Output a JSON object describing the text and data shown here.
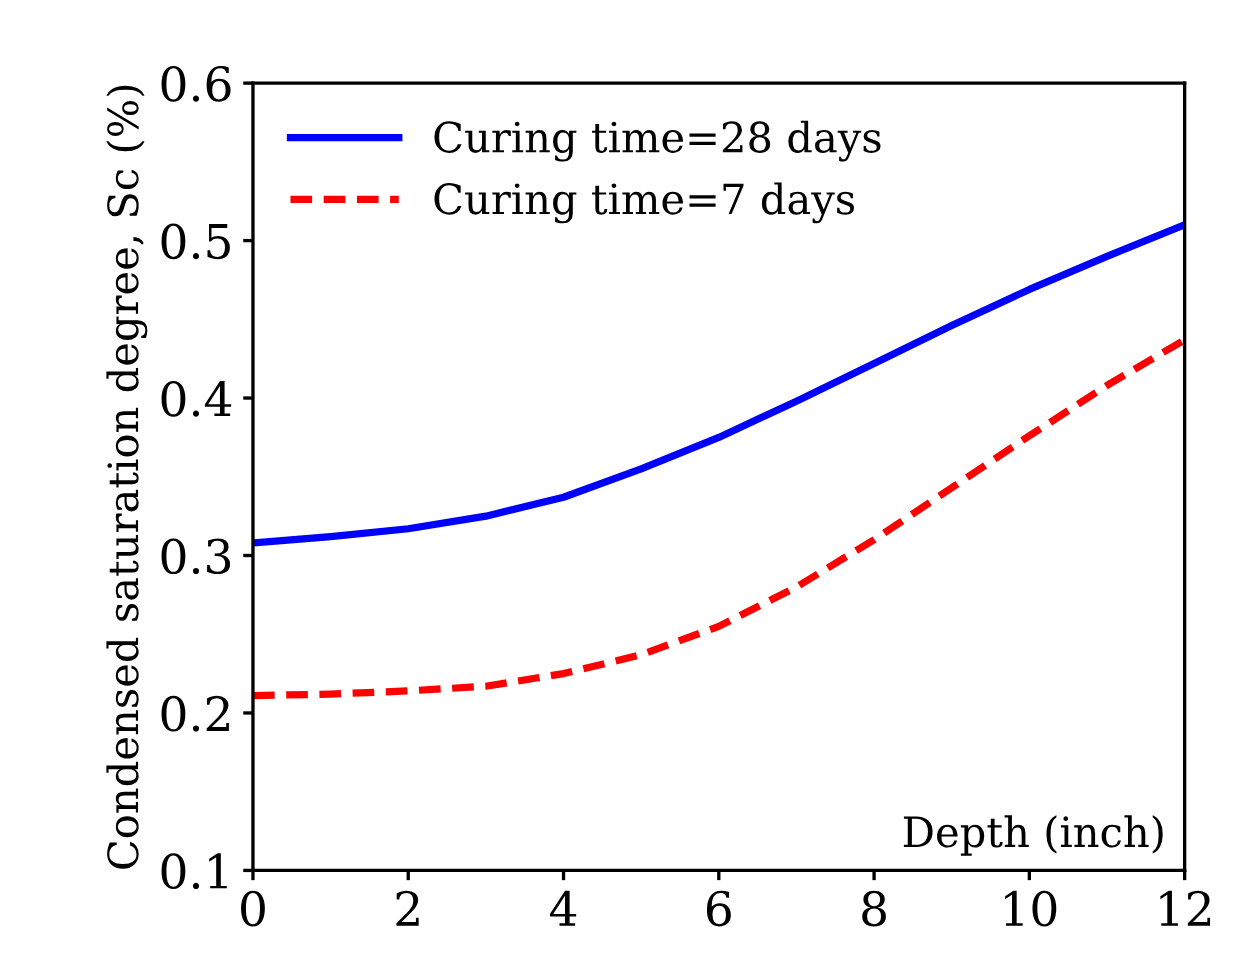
{
  "chart_data": {
    "type": "line",
    "xlabel": "Depth (inch)",
    "ylabel": "Condensed saturation degree, Sc (%)",
    "x": [
      0,
      1,
      2,
      3,
      4,
      5,
      6,
      7,
      8,
      9,
      10,
      11,
      12
    ],
    "series": [
      {
        "name": "Curing time=28 days",
        "color": "#0000ff",
        "line_style": "solid",
        "values": [
          0.308,
          0.312,
          0.317,
          0.325,
          0.337,
          0.355,
          0.375,
          0.398,
          0.422,
          0.446,
          0.469,
          0.49,
          0.51
        ]
      },
      {
        "name": "Curing time=7 days",
        "color": "#ff0000",
        "line_style": "dashed",
        "values": [
          0.211,
          0.212,
          0.214,
          0.217,
          0.225,
          0.237,
          0.255,
          0.28,
          0.31,
          0.343,
          0.376,
          0.408,
          0.437
        ]
      }
    ],
    "xlim": [
      0,
      12
    ],
    "xticks": [
      0,
      2,
      4,
      6,
      8,
      10,
      12
    ],
    "ylim": [
      0.1,
      0.6
    ],
    "yticks": [
      0.1,
      0.2,
      0.3,
      0.4,
      0.5,
      0.6
    ],
    "grid": false,
    "legend": "top left",
    "marker": "none"
  }
}
